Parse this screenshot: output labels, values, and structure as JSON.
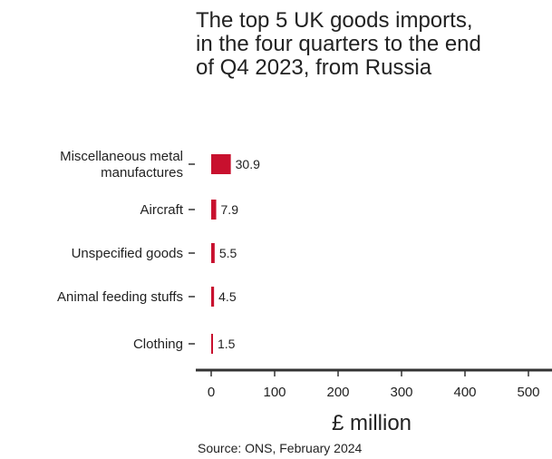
{
  "chart_data": {
    "type": "bar",
    "orientation": "horizontal",
    "title": "The top 5 UK goods imports, in the four quarters to the end of Q4 2023, from Russia",
    "categories": [
      [
        "Miscellaneous metal",
        "manufactures"
      ],
      [
        "Aircraft"
      ],
      [
        "Unspecified goods"
      ],
      [
        "Animal feeding stuffs"
      ],
      [
        "Clothing"
      ]
    ],
    "values": [
      30.9,
      7.9,
      5.5,
      4.5,
      1.5
    ],
    "value_labels": [
      "30.9",
      "7.9",
      "5.5",
      "4.5",
      "1.5"
    ],
    "xlabel": "£ million",
    "xlim": [
      0,
      520
    ],
    "xticks": [
      0,
      100,
      200,
      300,
      400,
      500
    ],
    "xtick_labels": [
      "0",
      "100",
      "200",
      "300",
      "400",
      "500"
    ],
    "grid": false,
    "bar_color": "#c8102e"
  },
  "source": "Source: ONS, February 2024"
}
